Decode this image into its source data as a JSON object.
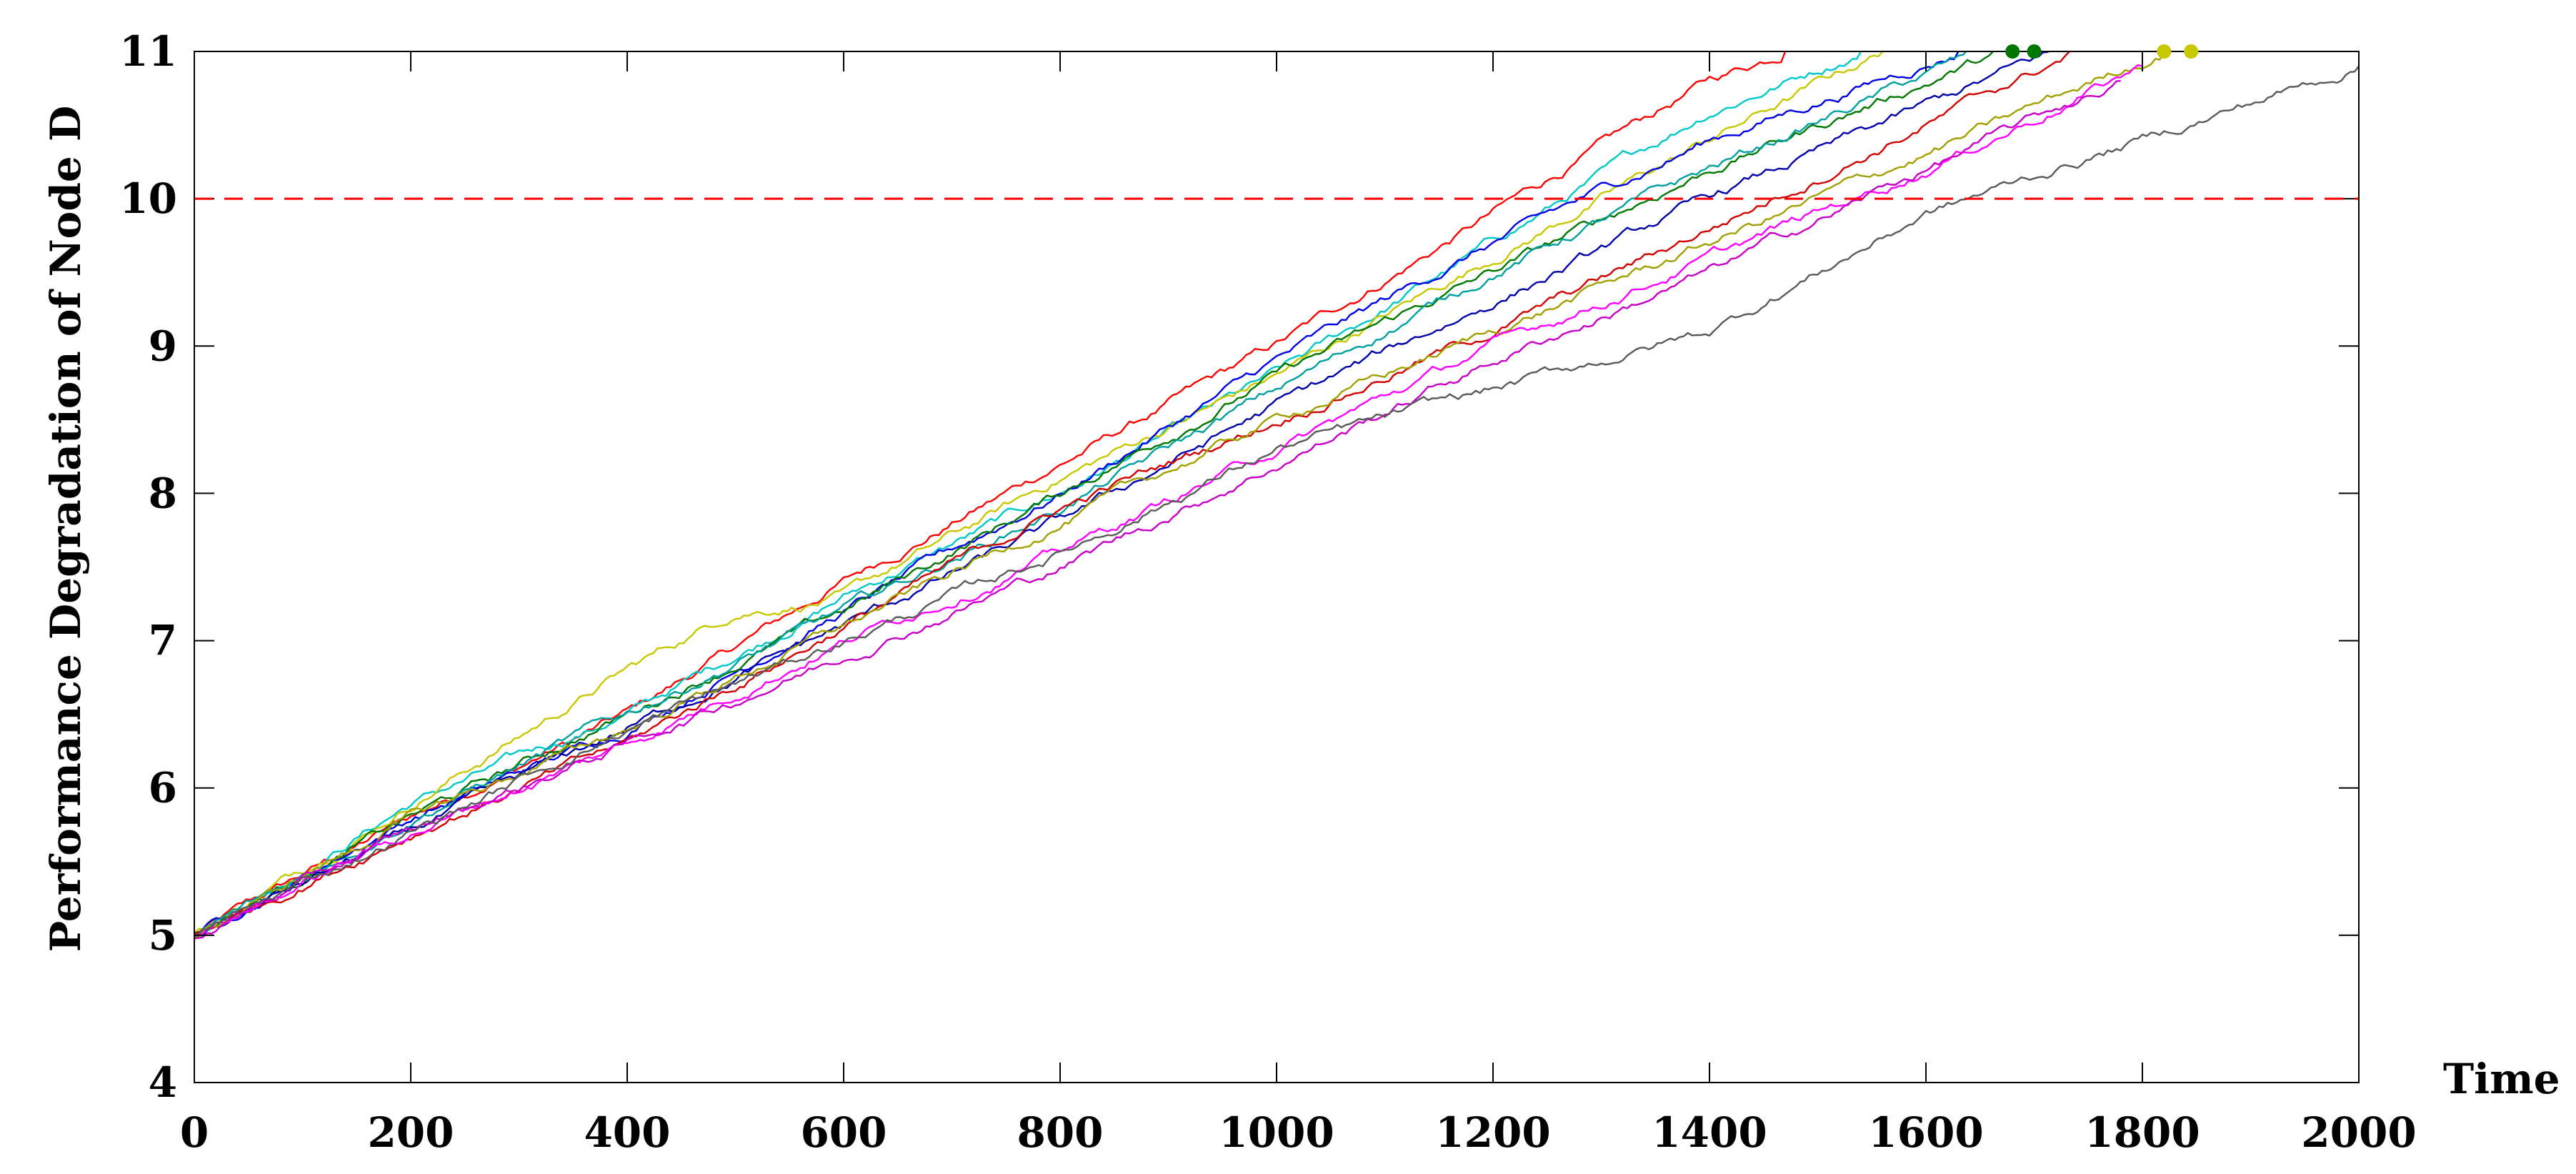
{
  "chart_data": {
    "type": "line",
    "title": "",
    "xlabel": "Time",
    "ylabel": "Performance Degradation of Node D",
    "xlim": [
      0,
      2000
    ],
    "ylim": [
      4,
      11
    ],
    "xticks": [
      0,
      200,
      400,
      600,
      800,
      1000,
      1200,
      1400,
      1600,
      1800,
      2000
    ],
    "yticks": [
      4,
      5,
      6,
      7,
      8,
      9,
      10,
      11
    ],
    "xtick_labels": [
      "0",
      "200",
      "400",
      "600",
      "800",
      "1000",
      "1200",
      "1400",
      "1600",
      "1800",
      "2000"
    ],
    "ytick_labels": [
      "4",
      "5",
      "6",
      "7",
      "8",
      "9",
      "10",
      "11"
    ],
    "threshold": {
      "y": 10,
      "color": "#ff0000",
      "style": "dashed"
    },
    "grid": false,
    "legend": "none",
    "series": [
      {
        "color": "#ff0000",
        "x": [
          0,
          200,
          400,
          600,
          800,
          1000,
          1200,
          1400,
          1470
        ],
        "y": [
          5.0,
          5.8,
          6.5,
          7.4,
          8.2,
          9.0,
          9.9,
          10.8,
          11.0
        ]
      },
      {
        "color": "#00c8c8",
        "x": [
          0,
          200,
          400,
          600,
          800,
          1000,
          1200,
          1400,
          1540
        ],
        "y": [
          5.0,
          5.9,
          6.5,
          7.3,
          8.0,
          8.8,
          9.7,
          10.6,
          11.0
        ]
      },
      {
        "color": "#c8c800",
        "x": [
          0,
          200,
          400,
          500,
          600,
          800,
          1000,
          1200,
          1400,
          1560
        ],
        "y": [
          5.0,
          5.9,
          6.8,
          7.2,
          7.3,
          8.1,
          8.8,
          9.6,
          10.4,
          11.0
        ]
      },
      {
        "color": "#0000e6",
        "x": [
          0,
          200,
          400,
          600,
          800,
          1000,
          1200,
          1400,
          1630
        ],
        "y": [
          5.0,
          5.8,
          6.4,
          7.2,
          8.0,
          8.9,
          9.7,
          10.4,
          11.0
        ]
      },
      {
        "color": "#007800",
        "x": [
          0,
          200,
          400,
          600,
          800,
          1000,
          1200,
          1400,
          1670
        ],
        "y": [
          5.0,
          5.8,
          6.5,
          7.2,
          8.0,
          8.8,
          9.5,
          10.2,
          11.0
        ]
      },
      {
        "color": "#00a0a0",
        "x": [
          0,
          200,
          400,
          600,
          800,
          1000,
          1200,
          1400,
          1650
        ],
        "y": [
          5.0,
          5.8,
          6.5,
          7.2,
          7.9,
          8.7,
          9.5,
          10.2,
          11.0
        ]
      },
      {
        "color": "#0000aa",
        "x": [
          0,
          200,
          400,
          600,
          800,
          1000,
          1200,
          1400,
          1720
        ],
        "y": [
          5.0,
          5.7,
          6.4,
          7.1,
          7.8,
          8.6,
          9.3,
          10.0,
          11.0
        ]
      },
      {
        "color": "#d20000",
        "x": [
          0,
          200,
          400,
          600,
          800,
          1000,
          1200,
          1400,
          1740
        ],
        "y": [
          5.0,
          5.7,
          6.3,
          7.1,
          7.9,
          8.5,
          9.1,
          9.8,
          11.0
        ]
      },
      {
        "color": "#a0a000",
        "x": [
          0,
          200,
          400,
          600,
          800,
          1000,
          1200,
          1400,
          1600,
          1820
        ],
        "y": [
          5.0,
          5.8,
          6.4,
          7.1,
          7.8,
          8.5,
          9.1,
          9.7,
          10.3,
          11.0
        ]
      },
      {
        "color": "#ff00ff",
        "x": [
          0,
          200,
          400,
          600,
          800,
          1000,
          1200,
          1400,
          1600,
          1800
        ],
        "y": [
          5.0,
          5.7,
          6.3,
          7.0,
          7.6,
          8.3,
          9.0,
          9.6,
          10.2,
          10.9
        ]
      },
      {
        "color": "#c800c8",
        "x": [
          0,
          200,
          400,
          600,
          800,
          1000,
          1200,
          1400,
          1600,
          1780
        ],
        "y": [
          5.0,
          5.7,
          6.3,
          6.9,
          7.5,
          8.2,
          8.9,
          9.5,
          10.2,
          10.8
        ]
      },
      {
        "color": "#5a5a5a",
        "x": [
          0,
          200,
          400,
          600,
          800,
          1000,
          1200,
          1400,
          1600,
          1800,
          2000
        ],
        "y": [
          5.0,
          5.7,
          6.4,
          7.0,
          7.6,
          8.3,
          8.7,
          9.1,
          9.9,
          10.4,
          10.9
        ]
      }
    ],
    "markers": [
      {
        "x": 1680,
        "y": 11.0,
        "color": "#007800"
      },
      {
        "x": 1700,
        "y": 11.0,
        "color": "#007800"
      },
      {
        "x": 1820,
        "y": 11.0,
        "color": "#c8c800"
      },
      {
        "x": 1845,
        "y": 11.0,
        "color": "#c8c800"
      }
    ]
  }
}
